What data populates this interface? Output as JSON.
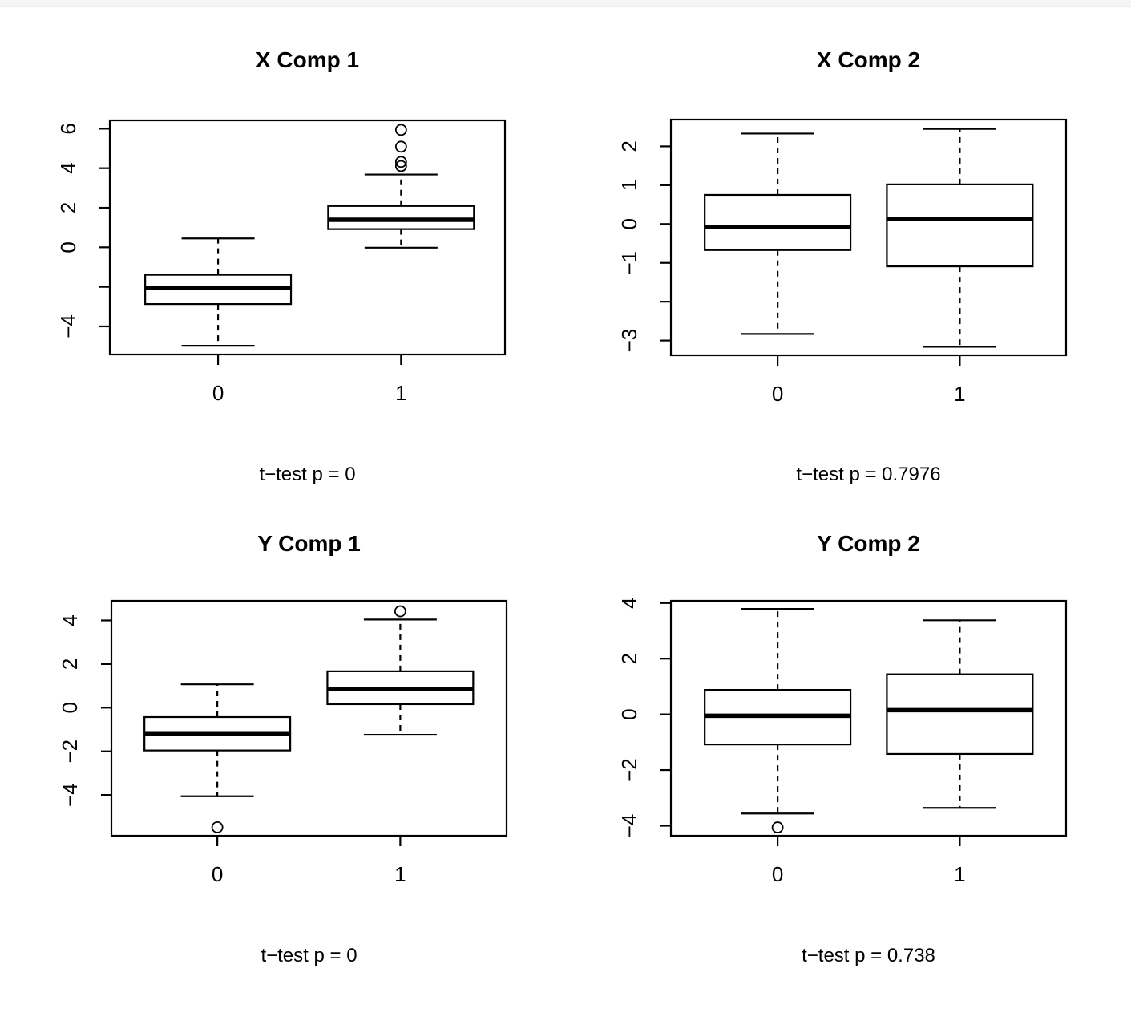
{
  "page": {
    "background_color": "#ffffff",
    "top_strip_color": "#f5f5f6",
    "plot_color": "#000000"
  },
  "chart_data": [
    {
      "type": "boxplot",
      "title": "X Comp 1",
      "subtitle": "t−test p = 0",
      "p_value_text": "0",
      "categories": [
        "0",
        "1"
      ],
      "ylim": [
        -5.42,
        6.42
      ],
      "grid": false,
      "y_ticks": [
        {
          "value": 6,
          "label": "6"
        },
        {
          "value": 4,
          "label": "4"
        },
        {
          "value": 2,
          "label": "2"
        },
        {
          "value": 0,
          "label": "0"
        },
        {
          "value": -2,
          "label": ""
        },
        {
          "value": -4,
          "label": "−4"
        }
      ],
      "groups": [
        {
          "label": "0",
          "lower_whisker": -4.98,
          "q1": -2.87,
          "median": -2.06,
          "q3": -1.39,
          "upper_whisker": 0.45,
          "outliers": []
        },
        {
          "label": "1",
          "lower_whisker": -0.02,
          "q1": 0.92,
          "median": 1.39,
          "q3": 2.09,
          "upper_whisker": 3.68,
          "outliers": [
            4.11,
            4.32,
            5.09,
            5.94
          ]
        }
      ]
    },
    {
      "type": "boxplot",
      "title": "X Comp 2",
      "subtitle": "t−test p = 0.7976",
      "p_value_text": "0.7976",
      "categories": [
        "0",
        "1"
      ],
      "ylim": [
        -3.38,
        2.69
      ],
      "grid": false,
      "y_ticks": [
        {
          "value": 2,
          "label": "2"
        },
        {
          "value": 1,
          "label": "1"
        },
        {
          "value": 0,
          "label": "0"
        },
        {
          "value": -1,
          "label": "−1"
        },
        {
          "value": -2,
          "label": ""
        },
        {
          "value": -3,
          "label": "−3"
        }
      ],
      "groups": [
        {
          "label": "0",
          "lower_whisker": -2.83,
          "q1": -0.67,
          "median": -0.08,
          "q3": 0.75,
          "upper_whisker": 2.33,
          "outliers": []
        },
        {
          "label": "1",
          "lower_whisker": -3.16,
          "q1": -1.09,
          "median": 0.13,
          "q3": 1.02,
          "upper_whisker": 2.45,
          "outliers": []
        }
      ]
    },
    {
      "type": "boxplot",
      "title": "Y Comp 1",
      "subtitle": "t−test p = 0",
      "p_value_text": "0",
      "categories": [
        "0",
        "1"
      ],
      "ylim": [
        -5.87,
        4.9
      ],
      "grid": false,
      "y_ticks": [
        {
          "value": 4,
          "label": "4"
        },
        {
          "value": 2,
          "label": "2"
        },
        {
          "value": 0,
          "label": "0"
        },
        {
          "value": -2,
          "label": "−2"
        },
        {
          "value": -4,
          "label": "−4"
        }
      ],
      "groups": [
        {
          "label": "0",
          "lower_whisker": -4.06,
          "q1": -1.96,
          "median": -1.21,
          "q3": -0.43,
          "upper_whisker": 1.07,
          "outliers": [
            -5.48
          ]
        },
        {
          "label": "1",
          "lower_whisker": -1.24,
          "q1": 0.16,
          "median": 0.85,
          "q3": 1.67,
          "upper_whisker": 4.04,
          "outliers": [
            4.42
          ]
        }
      ]
    },
    {
      "type": "boxplot",
      "title": "Y Comp 2",
      "subtitle": "t−test p = 0.738",
      "p_value_text": "0.738",
      "categories": [
        "0",
        "1"
      ],
      "ylim": [
        -4.36,
        4.08
      ],
      "grid": false,
      "y_ticks": [
        {
          "value": 4,
          "label": "4"
        },
        {
          "value": 2,
          "label": "2"
        },
        {
          "value": 0,
          "label": "0"
        },
        {
          "value": -2,
          "label": "−2"
        },
        {
          "value": -4,
          "label": "−4"
        }
      ],
      "groups": [
        {
          "label": "0",
          "lower_whisker": -3.56,
          "q1": -1.08,
          "median": -0.05,
          "q3": 0.88,
          "upper_whisker": 3.79,
          "outliers": [
            -4.06
          ]
        },
        {
          "label": "1",
          "lower_whisker": -3.36,
          "q1": -1.42,
          "median": 0.15,
          "q3": 1.44,
          "upper_whisker": 3.38,
          "outliers": []
        }
      ]
    }
  ]
}
